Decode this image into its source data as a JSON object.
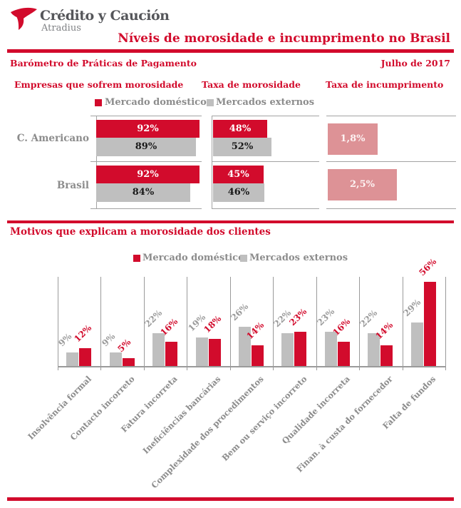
{
  "header": {
    "brand": "Crédito y Caución",
    "sub_brand": "Atradius",
    "title": "Níveis de morosidade e incumprimento no Brasil",
    "report_name": "Barómetro de Práticas de Pagamento",
    "date": "Julho de 2017"
  },
  "colors": {
    "accent_red": "#d20b2c",
    "bar_gray": "#bfbfbf",
    "soft_pink": "#dd9296",
    "text_gray": "#8c8c8c",
    "grid_line": "#a3a3a3"
  },
  "legend": {
    "domestic_label": "Mercado doméstico",
    "external_label": "Mercados externos"
  },
  "top_section": {
    "column_headers": [
      "Empresas que sofrem morosidade",
      "Taxa de morosidade",
      "Taxa de incumprimento"
    ],
    "row_labels": [
      "C. Americano",
      "Brasil"
    ]
  },
  "bottom_section": {
    "heading": "Motivos que explicam a morosidade dos clientes"
  },
  "chart_data": [
    {
      "type": "bar",
      "orientation": "horizontal",
      "title": "Empresas que sofrem morosidade",
      "categories": [
        "C. Americano",
        "Brasil"
      ],
      "series": [
        {
          "name": "Mercado doméstico",
          "color": "#d20b2c",
          "values": [
            92,
            92
          ],
          "labels": [
            "92%",
            "92%"
          ]
        },
        {
          "name": "Mercados externos",
          "color": "#bfbfbf",
          "values": [
            89,
            84
          ],
          "labels": [
            "89%",
            "84%"
          ]
        }
      ],
      "xlim": [
        0,
        100
      ],
      "unit": "%"
    },
    {
      "type": "bar",
      "orientation": "horizontal",
      "title": "Taxa de morosidade",
      "categories": [
        "C. Americano",
        "Brasil"
      ],
      "series": [
        {
          "name": "Mercado doméstico",
          "color": "#d20b2c",
          "values": [
            48,
            45
          ],
          "labels": [
            "48%",
            "45%"
          ]
        },
        {
          "name": "Mercados externos",
          "color": "#bfbfbf",
          "values": [
            52,
            46
          ],
          "labels": [
            "52%",
            "46%"
          ]
        }
      ],
      "xlim": [
        0,
        100
      ],
      "unit": "%"
    },
    {
      "type": "bar",
      "orientation": "horizontal",
      "title": "Taxa de incumprimento",
      "categories": [
        "C. Americano",
        "Brasil"
      ],
      "series": [
        {
          "name": "Taxa de incumprimento",
          "color": "#dd9296",
          "values": [
            1.8,
            2.5
          ],
          "labels": [
            "1,8%",
            "2,5%"
          ]
        }
      ],
      "unit": "%"
    },
    {
      "type": "bar",
      "orientation": "vertical",
      "title": "Motivos que explicam a morosidade dos clientes",
      "categories": [
        "Insolvência formal",
        "Contacto incorreto",
        "Fatura incorreta",
        "Ineficiências bancárias",
        "Complexidade dos procedimentos",
        "Bem ou serviço incorreto",
        "Qualidade incorreta",
        "Finan. à custa do fornecedor",
        "Falta de fundos"
      ],
      "series": [
        {
          "name": "Mercados externos",
          "color": "#bfbfbf",
          "values": [
            9,
            9,
            22,
            19,
            26,
            22,
            23,
            22,
            29
          ],
          "labels": [
            "9%",
            "9%",
            "22%",
            "19%",
            "26%",
            "22%",
            "23%",
            "22%",
            "29%"
          ]
        },
        {
          "name": "Mercado doméstico",
          "color": "#d20b2c",
          "values": [
            12,
            5,
            16,
            18,
            14,
            23,
            16,
            14,
            56
          ],
          "labels": [
            "12%",
            "5%",
            "16%",
            "18%",
            "14%",
            "23%",
            "16%",
            "14%",
            "56%"
          ]
        }
      ],
      "unit": "%",
      "ylim": [
        0,
        60
      ],
      "grid": "vertical-category-separators",
      "legend_position": "top-center"
    }
  ]
}
